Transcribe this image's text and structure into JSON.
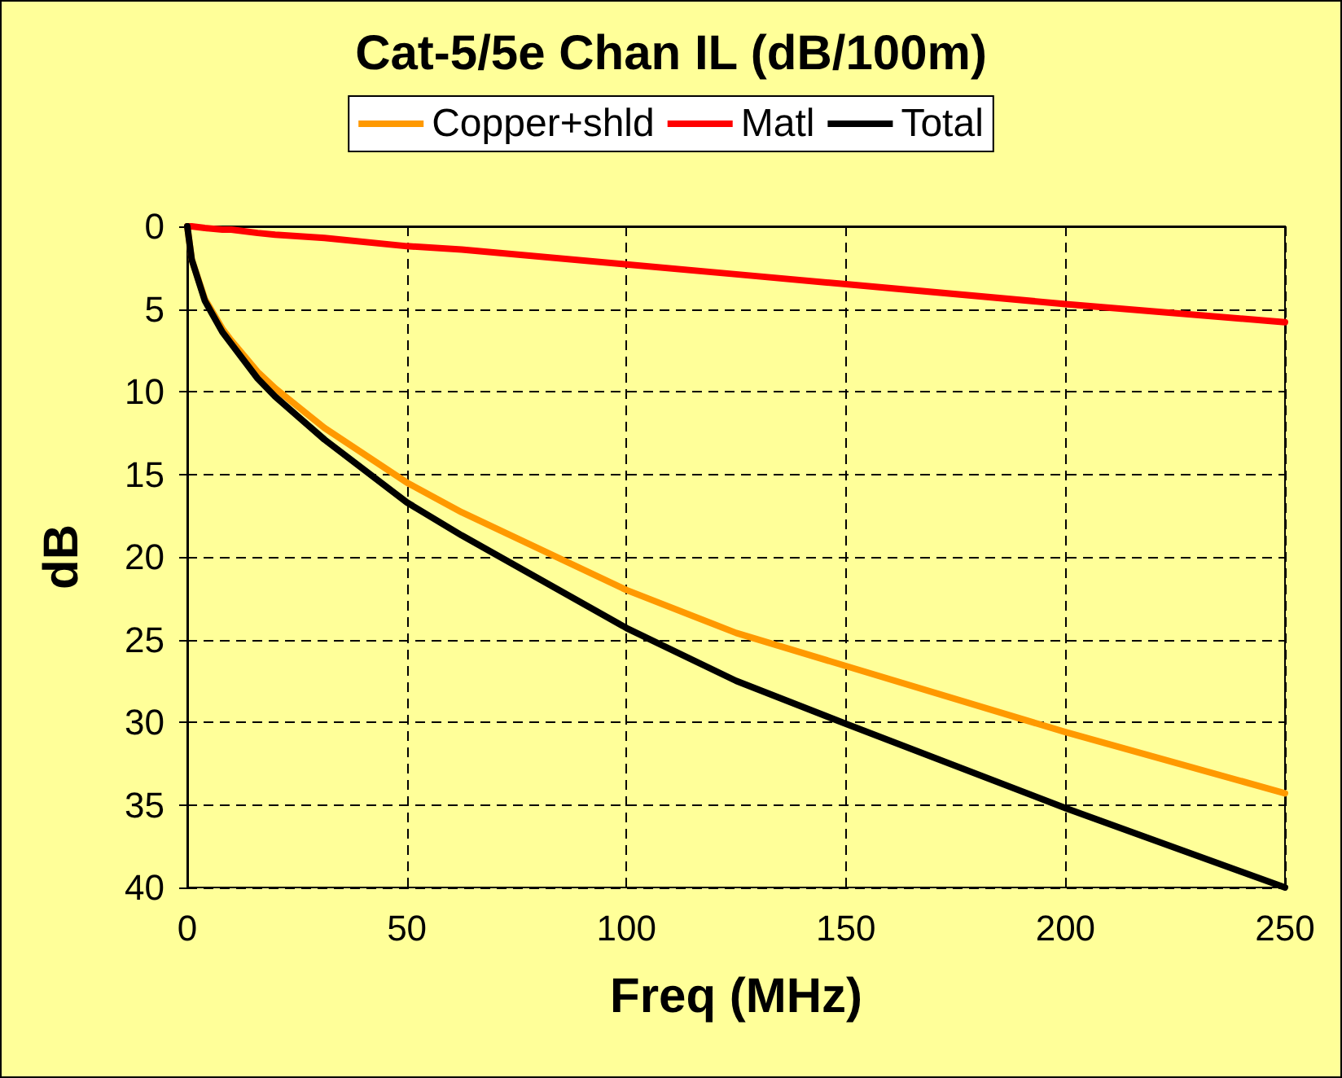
{
  "chart_data": {
    "type": "line",
    "title": "Cat-5/5e Chan IL (dB/100m)",
    "xlabel": "Freq (MHz)",
    "ylabel": "dB",
    "x": [
      0,
      1,
      4,
      8,
      10,
      16,
      20,
      31.25,
      50,
      62.5,
      100,
      125,
      150,
      200,
      250
    ],
    "series": [
      {
        "name": "Copper+shld",
        "color": "#ff9900",
        "values": [
          0,
          2.0,
          4.4,
          6.2,
          6.9,
          8.8,
          9.8,
          12.2,
          15.5,
          17.3,
          22.0,
          24.6,
          26.6,
          30.6,
          34.3
        ]
      },
      {
        "name": "Matl",
        "color": "#ff0000",
        "values": [
          0,
          0.0,
          0.1,
          0.2,
          0.2,
          0.4,
          0.5,
          0.7,
          1.2,
          1.4,
          2.3,
          2.9,
          3.5,
          4.7,
          5.8
        ]
      },
      {
        "name": "Total",
        "color": "#000000",
        "values": [
          0,
          2.0,
          4.5,
          6.4,
          7.1,
          9.2,
          10.3,
          12.9,
          16.7,
          18.7,
          24.3,
          27.5,
          30.1,
          35.2,
          40.0
        ]
      }
    ],
    "xlim": [
      0,
      250
    ],
    "xticks": [
      0,
      50,
      100,
      150,
      200,
      250
    ],
    "ylim": [
      40,
      0
    ],
    "yticks": [
      0,
      5,
      10,
      15,
      20,
      25,
      30,
      35,
      40
    ],
    "grid": true,
    "legend": "top",
    "marker": "none",
    "line_style": "solid"
  }
}
